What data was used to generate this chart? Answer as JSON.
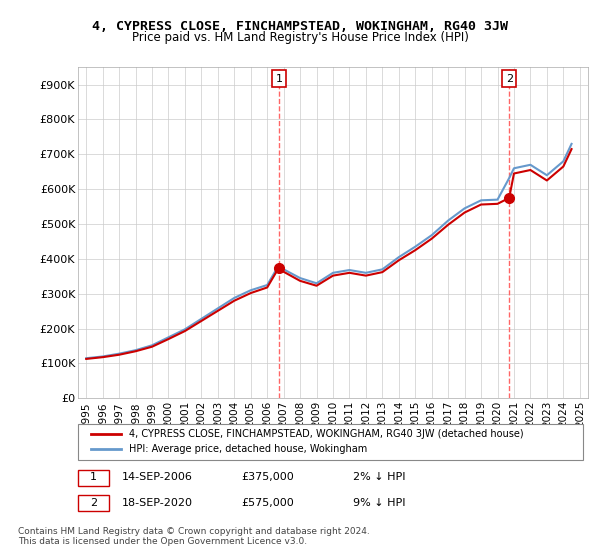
{
  "title": "4, CYPRESS CLOSE, FINCHAMPSTEAD, WOKINGHAM, RG40 3JW",
  "subtitle": "Price paid vs. HM Land Registry's House Price Index (HPI)",
  "legend_line1": "4, CYPRESS CLOSE, FINCHAMPSTEAD, WOKINGHAM, RG40 3JW (detached house)",
  "legend_line2": "HPI: Average price, detached house, Wokingham",
  "footnote": "Contains HM Land Registry data © Crown copyright and database right 2024.\nThis data is licensed under the Open Government Licence v3.0.",
  "purchase1_label": "1",
  "purchase1_date": "14-SEP-2006",
  "purchase1_price": "£375,000",
  "purchase1_hpi": "2% ↓ HPI",
  "purchase2_label": "2",
  "purchase2_date": "18-SEP-2020",
  "purchase2_price": "£575,000",
  "purchase2_hpi": "9% ↓ HPI",
  "purchase1_x": 2006.71,
  "purchase1_y": 375000,
  "purchase2_x": 2020.71,
  "purchase2_y": 575000,
  "red_color": "#cc0000",
  "blue_color": "#6699cc",
  "vline_color": "#ff6666",
  "dot_color": "#cc0000",
  "background_color": "#ffffff",
  "grid_color": "#cccccc",
  "ylim": [
    0,
    950000
  ],
  "xlim_start": 1994.5,
  "xlim_end": 2025.5,
  "yticks": [
    0,
    100000,
    200000,
    300000,
    400000,
    500000,
    600000,
    700000,
    800000,
    900000
  ],
  "ytick_labels": [
    "£0",
    "£100K",
    "£200K",
    "£300K",
    "£400K",
    "£500K",
    "£600K",
    "£700K",
    "£800K",
    "£900K"
  ],
  "xticks": [
    1995,
    1996,
    1997,
    1998,
    1999,
    2000,
    2001,
    2002,
    2003,
    2004,
    2005,
    2006,
    2007,
    2008,
    2009,
    2010,
    2011,
    2012,
    2013,
    2014,
    2015,
    2016,
    2017,
    2018,
    2019,
    2020,
    2021,
    2022,
    2023,
    2024,
    2025
  ],
  "hpi_years": [
    1995,
    1996,
    1997,
    1998,
    1999,
    2000,
    2001,
    2002,
    2003,
    2004,
    2005,
    2006,
    2006.71,
    2007,
    2008,
    2009,
    2010,
    2011,
    2012,
    2013,
    2014,
    2015,
    2016,
    2017,
    2018,
    2019,
    2020,
    2020.71,
    2021,
    2022,
    2023,
    2024,
    2024.5
  ],
  "hpi_values": [
    115000,
    120000,
    128000,
    138000,
    152000,
    175000,
    198000,
    228000,
    258000,
    288000,
    310000,
    325000,
    382000,
    370000,
    345000,
    330000,
    360000,
    368000,
    360000,
    370000,
    405000,
    435000,
    468000,
    510000,
    545000,
    568000,
    570000,
    632000,
    660000,
    670000,
    640000,
    680000,
    730000
  ],
  "price_years": [
    1995,
    1996,
    1997,
    1998,
    1999,
    2000,
    2001,
    2002,
    2003,
    2004,
    2005,
    2006,
    2006.71,
    2007,
    2008,
    2009,
    2010,
    2011,
    2012,
    2013,
    2014,
    2015,
    2016,
    2017,
    2018,
    2019,
    2020,
    2020.71,
    2021,
    2022,
    2023,
    2024,
    2024.5
  ],
  "price_values": [
    113000,
    118000,
    125000,
    135000,
    148000,
    170000,
    193000,
    222000,
    251000,
    280000,
    302000,
    318000,
    375000,
    363000,
    337000,
    323000,
    352000,
    360000,
    352000,
    362000,
    396000,
    425000,
    458000,
    498000,
    533000,
    556000,
    558000,
    575000,
    645000,
    655000,
    625000,
    665000,
    715000
  ]
}
